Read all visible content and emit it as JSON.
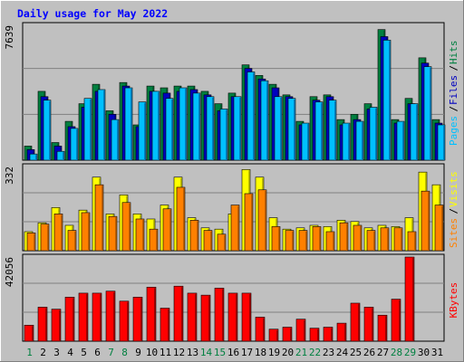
{
  "chart_data": [
    {
      "type": "bar",
      "title": "Daily usage for May 2022",
      "categories": [
        "1",
        "2",
        "3",
        "4",
        "5",
        "6",
        "7",
        "8",
        "9",
        "10",
        "11",
        "12",
        "13",
        "14",
        "15",
        "16",
        "17",
        "18",
        "19",
        "20",
        "21",
        "22",
        "23",
        "24",
        "25",
        "26",
        "27",
        "28",
        "29",
        "30",
        "31"
      ],
      "weekend_days": [
        "1",
        "7",
        "8",
        "14",
        "15",
        "21",
        "22",
        "28",
        "29"
      ],
      "ymax_label": "7639",
      "ylim": [
        0,
        7639
      ],
      "legend": [
        "Pages",
        "Files",
        "Hits"
      ],
      "series": [
        {
          "name": "Hits",
          "values": [
            800,
            3900,
            1000,
            2200,
            3200,
            4300,
            2800,
            4400,
            2000,
            4200,
            4100,
            4200,
            4200,
            3900,
            3200,
            3800,
            5400,
            4800,
            4300,
            3700,
            2200,
            3600,
            3700,
            2300,
            2600,
            3200,
            7400,
            2300,
            3500,
            5800,
            2300
          ]
        },
        {
          "name": "Files",
          "values": [
            600,
            3600,
            800,
            1900,
            3000,
            3900,
            2600,
            4200,
            1900,
            3900,
            3800,
            3900,
            4000,
            3700,
            2800,
            3600,
            5200,
            4600,
            4100,
            3600,
            2000,
            3400,
            3600,
            2000,
            2300,
            2900,
            7000,
            2100,
            3200,
            5500,
            2100
          ]
        },
        {
          "name": "Pages",
          "values": [
            350,
            3400,
            500,
            1800,
            3500,
            4000,
            2300,
            4100,
            3300,
            3900,
            3500,
            4100,
            3800,
            3600,
            2900,
            3600,
            5000,
            4500,
            3600,
            3500,
            2100,
            3300,
            3400,
            2100,
            2200,
            3000,
            6800,
            2200,
            3200,
            5300,
            2000
          ]
        }
      ]
    },
    {
      "type": "bar",
      "ymax_label": "332",
      "ylim": [
        0,
        332
      ],
      "legend": [
        "Sites",
        "Visits"
      ],
      "series": [
        {
          "name": "Visits",
          "values": [
            75,
            110,
            170,
            100,
            160,
            290,
            145,
            220,
            145,
            125,
            180,
            290,
            130,
            90,
            85,
            145,
            320,
            290,
            130,
            85,
            90,
            100,
            95,
            120,
            115,
            90,
            100,
            95,
            130,
            310,
            260
          ]
        },
        {
          "name": "Sites",
          "values": [
            70,
            105,
            145,
            80,
            150,
            260,
            135,
            190,
            125,
            85,
            165,
            250,
            120,
            80,
            65,
            180,
            225,
            240,
            95,
            80,
            80,
            95,
            75,
            110,
            100,
            80,
            90,
            90,
            75,
            235,
            180
          ]
        }
      ]
    },
    {
      "type": "bar",
      "ymax_label": "42056",
      "ylim": [
        0,
        42056
      ],
      "legend": [
        "KBytes"
      ],
      "series": [
        {
          "name": "KBytes",
          "values": [
            8000,
            17000,
            16000,
            22000,
            24000,
            24000,
            25000,
            20000,
            22000,
            27000,
            16500,
            27500,
            24000,
            23000,
            26500,
            24000,
            24000,
            12000,
            6000,
            7000,
            11000,
            6500,
            7000,
            9000,
            19000,
            17000,
            13000,
            21000,
            42056
          ]
        }
      ]
    }
  ]
}
